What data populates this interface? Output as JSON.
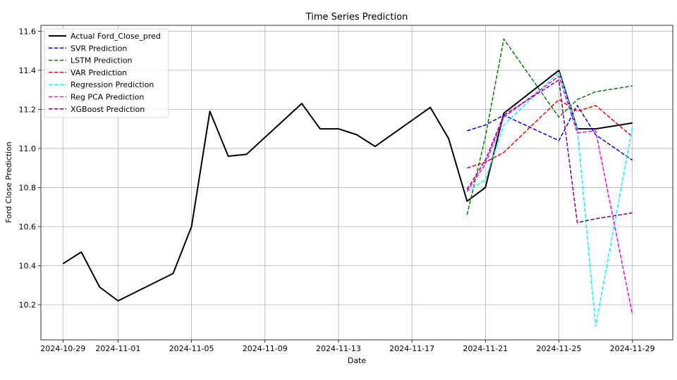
{
  "chart_data": {
    "type": "line",
    "title": "Time Series Prediction",
    "xlabel": "Date",
    "ylabel": "Ford Close Prediction",
    "xlim": [
      "2024-10-27T19:12",
      "2024-12-01T04:48"
    ],
    "ylim": [
      10.02,
      11.63
    ],
    "x_ticks": [
      "2024-10-29",
      "2024-11-01",
      "2024-11-05",
      "2024-11-09",
      "2024-11-13",
      "2024-11-17",
      "2024-11-21",
      "2024-11-25",
      "2024-11-29"
    ],
    "y_ticks": [
      10.2,
      10.4,
      10.6,
      10.8,
      11.0,
      11.2,
      11.4,
      11.6
    ],
    "grid": true,
    "legend_position": "upper-left",
    "series": [
      {
        "name": "Actual Ford_Close_pred",
        "color": "#000000",
        "dash": "solid",
        "points": [
          [
            "2024-10-29",
            10.41
          ],
          [
            "2024-10-30",
            10.47
          ],
          [
            "2024-10-31",
            10.29
          ],
          [
            "2024-11-01",
            10.22
          ],
          [
            "2024-11-04",
            10.36
          ],
          [
            "2024-11-05",
            10.6
          ],
          [
            "2024-11-06",
            11.19
          ],
          [
            "2024-11-07",
            10.96
          ],
          [
            "2024-11-08",
            10.97
          ],
          [
            "2024-11-11",
            11.23
          ],
          [
            "2024-11-12",
            11.1
          ],
          [
            "2024-11-13",
            11.1
          ],
          [
            "2024-11-14",
            11.07
          ],
          [
            "2024-11-15",
            11.01
          ],
          [
            "2024-11-18",
            11.21
          ],
          [
            "2024-11-19",
            11.05
          ],
          [
            "2024-11-20",
            10.73
          ],
          [
            "2024-11-21",
            10.8
          ],
          [
            "2024-11-22",
            11.18
          ],
          [
            "2024-11-25",
            11.4
          ],
          [
            "2024-11-26",
            11.1
          ],
          [
            "2024-11-27",
            11.1
          ],
          [
            "2024-11-29",
            11.13
          ]
        ]
      },
      {
        "name": "SVR Prediction",
        "color": "#0000ff",
        "dash": "dashed",
        "points": [
          [
            "2024-11-20",
            11.09
          ],
          [
            "2024-11-21",
            11.12
          ],
          [
            "2024-11-22",
            11.17
          ],
          [
            "2024-11-25",
            11.04
          ],
          [
            "2024-11-26",
            11.22
          ],
          [
            "2024-11-27",
            11.07
          ],
          [
            "2024-11-29",
            10.94
          ]
        ]
      },
      {
        "name": "LSTM Prediction",
        "color": "#008000",
        "dash": "dashed",
        "points": [
          [
            "2024-11-20",
            10.66
          ],
          [
            "2024-11-21",
            11.06
          ],
          [
            "2024-11-22",
            11.56
          ],
          [
            "2024-11-25",
            11.16
          ],
          [
            "2024-11-26",
            11.25
          ],
          [
            "2024-11-27",
            11.29
          ],
          [
            "2024-11-29",
            11.32
          ]
        ]
      },
      {
        "name": "VAR Prediction",
        "color": "#ff0000",
        "dash": "dashed",
        "points": [
          [
            "2024-11-20",
            10.9
          ],
          [
            "2024-11-21",
            10.93
          ],
          [
            "2024-11-22",
            10.98
          ],
          [
            "2024-11-25",
            11.25
          ],
          [
            "2024-11-26",
            11.19
          ],
          [
            "2024-11-27",
            11.22
          ],
          [
            "2024-11-29",
            11.06
          ]
        ]
      },
      {
        "name": "Regression Prediction",
        "color": "#00ffff",
        "dash": "dashed",
        "points": [
          [
            "2024-11-20",
            10.78
          ],
          [
            "2024-11-21",
            10.84
          ],
          [
            "2024-11-22",
            11.12
          ],
          [
            "2024-11-25",
            11.39
          ],
          [
            "2024-11-26",
            11.1
          ],
          [
            "2024-11-27",
            10.09
          ],
          [
            "2024-11-29",
            11.11
          ]
        ]
      },
      {
        "name": "Reg PCA Prediction",
        "color": "#ff00ff",
        "dash": "dashed",
        "points": [
          [
            "2024-11-20",
            10.78
          ],
          [
            "2024-11-21",
            10.92
          ],
          [
            "2024-11-22",
            11.16
          ],
          [
            "2024-11-25",
            11.37
          ],
          [
            "2024-11-26",
            11.08
          ],
          [
            "2024-11-27",
            11.09
          ],
          [
            "2024-11-29",
            10.15
          ]
        ]
      },
      {
        "name": "XGBoost Prediction",
        "color": "#800080",
        "dash": "dashed",
        "points": [
          [
            "2024-11-20",
            10.79
          ],
          [
            "2024-11-21",
            10.94
          ],
          [
            "2024-11-22",
            11.17
          ],
          [
            "2024-11-25",
            11.35
          ],
          [
            "2024-11-26",
            10.62
          ],
          [
            "2024-11-27",
            10.64
          ],
          [
            "2024-11-29",
            10.67
          ]
        ]
      }
    ]
  }
}
